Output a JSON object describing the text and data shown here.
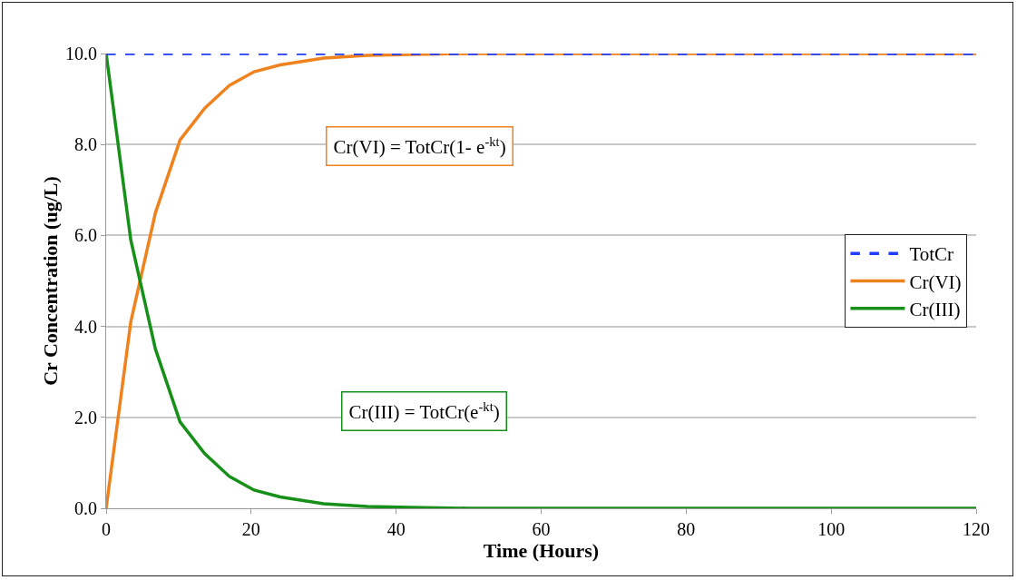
{
  "chart_data": {
    "type": "line",
    "xlabel": "Time (Hours)",
    "ylabel": "Cr Concentration (ug/L)",
    "x": [
      0,
      3.4,
      6.8,
      10.2,
      13.6,
      17,
      20.4,
      24,
      30,
      36,
      42,
      50,
      60,
      80,
      100,
      120
    ],
    "series": [
      {
        "name": "TotCr",
        "color": "#1f3cff",
        "line_style": "dashed",
        "x": [
          0,
          120
        ],
        "values": [
          10,
          10
        ]
      },
      {
        "name": "Cr(VI)",
        "color": "#f0821e",
        "values": [
          0,
          4.1,
          6.5,
          8.1,
          8.8,
          9.3,
          9.6,
          9.75,
          9.9,
          9.96,
          9.98,
          10,
          10,
          10,
          10,
          10
        ]
      },
      {
        "name": "Cr(III)",
        "color": "#17901a",
        "values": [
          10,
          5.9,
          3.5,
          1.9,
          1.2,
          0.7,
          0.4,
          0.25,
          0.1,
          0.04,
          0.02,
          0,
          0,
          0,
          0,
          0
        ]
      }
    ],
    "annotations": [
      "Cr(VI) = TotCr(1- e$^{-kt}$)",
      "Cr(III) = TotCr(e$^{-kt}$)"
    ],
    "xlim": [
      0,
      120
    ],
    "xticks": [
      0,
      20,
      40,
      60,
      80,
      100,
      120
    ],
    "ylim": [
      0,
      10
    ],
    "yticks": [
      {
        "value": 0,
        "label": "0.0"
      },
      {
        "value": 2,
        "label": "2.0"
      },
      {
        "value": 4,
        "label": "4.0"
      },
      {
        "value": 6,
        "label": "6.0"
      },
      {
        "value": 8,
        "label": "8.0"
      },
      {
        "value": 10,
        "label": "10.0"
      }
    ],
    "grid": "y",
    "legend": "right",
    "marker": "none",
    "line_style": "solid"
  }
}
